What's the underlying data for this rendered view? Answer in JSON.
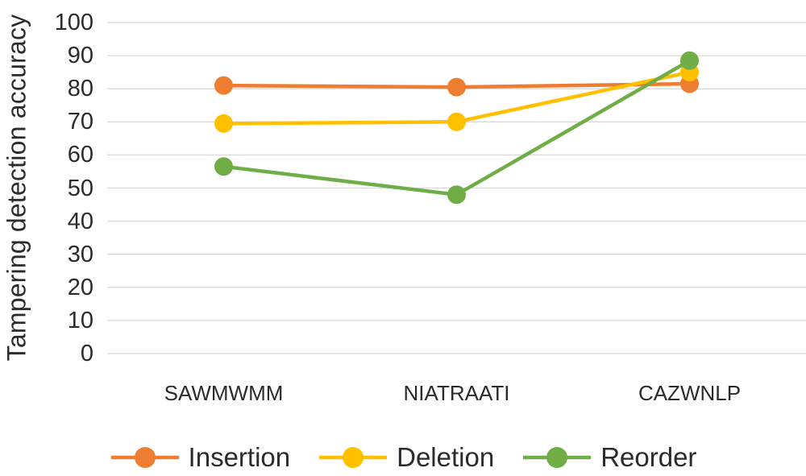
{
  "chart_data": {
    "type": "line",
    "title": "",
    "ylabel": "Tampering detection accuracy",
    "xlabel": "",
    "categories": [
      "SAWMWMM",
      "NIATRAATI",
      "CAZWNLP"
    ],
    "series": [
      {
        "name": "Insertion",
        "color": "#ED7D31",
        "values": [
          81,
          80.5,
          81.5
        ]
      },
      {
        "name": "Deletion",
        "color": "#FFC000",
        "values": [
          69.5,
          70,
          85
        ]
      },
      {
        "name": "Reorder",
        "color": "#70AD47",
        "values": [
          56.5,
          48,
          88.5
        ]
      }
    ],
    "ylim": [
      0,
      100
    ],
    "yticks": [
      0,
      10,
      20,
      30,
      40,
      50,
      60,
      70,
      80,
      90,
      100
    ],
    "grid": "horizontal",
    "gridline_color": "#D9D9D9",
    "text_color": "#2b2b2b",
    "background": "#FFFFFF",
    "legend_position": "bottom",
    "marker": "circle"
  }
}
